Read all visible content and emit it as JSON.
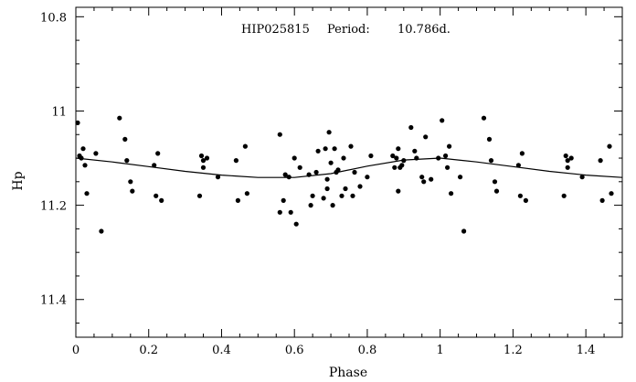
{
  "chart_data": {
    "type": "scatter",
    "title": "",
    "annotation": {
      "star": "HIP025815",
      "period_label": "Period:",
      "period_value": "10.786d."
    },
    "xlabel": "Phase",
    "ylabel": "Hp",
    "xlim": [
      0,
      1.5
    ],
    "ylim": [
      11.48,
      10.78
    ],
    "y_inverted": true,
    "xticks": [
      0,
      0.2,
      0.4,
      0.6,
      0.8,
      1.0,
      1.2,
      1.4
    ],
    "xtick_labels": [
      "0",
      "0.2",
      "0.4",
      "0.6",
      "0.8",
      "1",
      "1.2",
      "1.4"
    ],
    "yticks": [
      10.8,
      11.0,
      11.2,
      11.4
    ],
    "ytick_labels": [
      "10.8",
      "11",
      "11.2",
      "11.4"
    ],
    "grid": false,
    "series": [
      {
        "kind": "points",
        "x": [
          0.005,
          0.01,
          0.015,
          0.02,
          0.025,
          0.03,
          0.055,
          0.07,
          0.12,
          0.135,
          0.14,
          0.15,
          0.155,
          0.215,
          0.22,
          0.225,
          0.235,
          0.34,
          0.345,
          0.35,
          0.35,
          0.36,
          0.39,
          0.44,
          0.445,
          0.465,
          0.47,
          0.56,
          0.56,
          0.57,
          0.575,
          0.585,
          0.59,
          0.6,
          0.605,
          0.615,
          0.64,
          0.645,
          0.65,
          0.66,
          0.665,
          0.68,
          0.685,
          0.69,
          0.69,
          0.695,
          0.7,
          0.705,
          0.71,
          0.715,
          0.72,
          0.73,
          0.735,
          0.74,
          0.755,
          0.76,
          0.765,
          0.78,
          0.8,
          0.81,
          0.87,
          0.875,
          0.88,
          0.885,
          0.885,
          0.89,
          0.895,
          0.9,
          0.92,
          0.93,
          0.935,
          0.95,
          0.955,
          0.96,
          0.975,
          0.995,
          1.005,
          1.015,
          1.02,
          1.025,
          1.03,
          1.055,
          1.065,
          1.12,
          1.135,
          1.14,
          1.15,
          1.155,
          1.215,
          1.22,
          1.225,
          1.235,
          1.34,
          1.345,
          1.35,
          1.35,
          1.36,
          1.39,
          1.44,
          1.445,
          1.465,
          1.47
        ],
        "y": [
          11.025,
          11.095,
          11.1,
          11.08,
          11.115,
          11.175,
          11.09,
          11.255,
          11.015,
          11.06,
          11.105,
          11.15,
          11.17,
          11.115,
          11.18,
          11.09,
          11.19,
          11.18,
          11.095,
          11.105,
          11.12,
          11.1,
          11.14,
          11.105,
          11.19,
          11.075,
          11.175,
          11.05,
          11.215,
          11.19,
          11.135,
          11.14,
          11.215,
          11.1,
          11.24,
          11.12,
          11.135,
          11.2,
          11.18,
          11.13,
          11.085,
          11.185,
          11.08,
          11.145,
          11.165,
          11.045,
          11.11,
          11.2,
          11.08,
          11.13,
          11.125,
          11.18,
          11.1,
          11.165,
          11.075,
          11.18,
          11.13,
          11.16,
          11.14,
          11.095,
          11.095,
          11.12,
          11.1,
          11.08,
          11.17,
          11.12,
          11.115,
          11.105,
          11.035,
          11.085,
          11.1,
          11.14,
          11.15,
          11.055,
          11.145,
          11.1,
          11.02,
          11.095,
          11.12,
          11.075,
          11.175,
          11.14,
          11.255,
          11.015,
          11.06,
          11.105,
          11.15,
          11.17,
          11.115,
          11.18,
          11.09,
          11.19,
          11.18,
          11.095,
          11.105,
          11.12,
          11.1,
          11.14,
          11.105,
          11.19,
          11.075,
          11.175
        ]
      },
      {
        "kind": "line",
        "x": [
          0,
          0.1,
          0.2,
          0.3,
          0.4,
          0.5,
          0.6,
          0.7,
          0.8,
          0.9,
          1.0,
          1.1,
          1.2,
          1.3,
          1.4,
          1.5
        ],
        "y": [
          11.1,
          11.108,
          11.118,
          11.128,
          11.136,
          11.141,
          11.141,
          11.133,
          11.117,
          11.104,
          11.1,
          11.108,
          11.118,
          11.128,
          11.136,
          11.141
        ]
      }
    ]
  }
}
